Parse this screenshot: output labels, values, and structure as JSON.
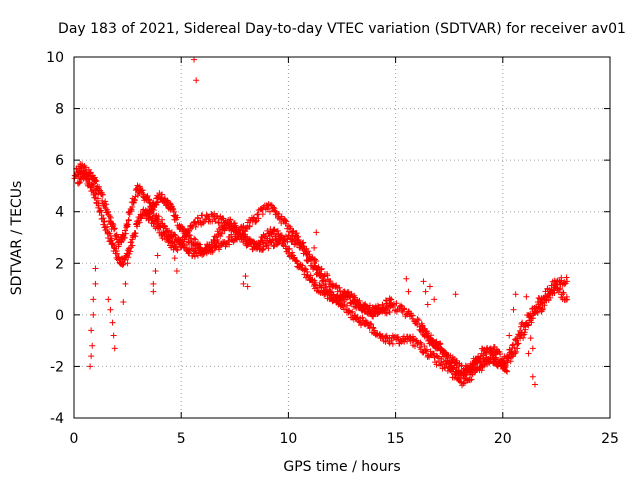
{
  "chart_data": {
    "type": "scatter",
    "title": "Day 183 of 2021, Sidereal Day-to-day VTEC variation (SDTVAR) for receiver av01",
    "xlabel": "GPS time / hours",
    "ylabel": "SDTVAR / TECUs",
    "xlim": [
      0,
      25
    ],
    "ylim": [
      -4,
      10
    ],
    "xticks": [
      0,
      5,
      10,
      15,
      20,
      25
    ],
    "yticks": [
      -4,
      -2,
      0,
      2,
      4,
      6,
      8,
      10
    ],
    "grid": true,
    "marker": "+",
    "color": "#ff0000",
    "series": [
      {
        "name": "av01",
        "curves": [
          {
            "x": [
              0.0,
              0.3,
              0.6,
              0.9,
              1.2,
              1.5,
              1.8,
              2.1,
              2.4,
              2.7,
              3.0,
              3.3,
              3.6,
              4.0,
              4.4,
              4.8,
              5.2,
              5.6,
              6.0,
              6.5,
              7.0,
              7.5,
              8.0,
              8.5,
              9.0,
              9.5,
              10.0,
              10.5,
              11.0,
              11.5,
              12.0,
              12.5,
              13.0,
              13.5,
              14.0,
              14.5,
              15.0,
              15.5,
              16.0,
              16.5,
              17.0,
              17.5,
              18.0,
              18.5,
              19.0,
              19.5,
              20.0,
              20.5,
              21.0,
              21.5,
              22.0,
              22.5,
              23.0
            ],
            "y": [
              5.4,
              5.7,
              5.6,
              5.3,
              4.8,
              4.1,
              3.4,
              2.8,
              3.2,
              4.3,
              4.9,
              4.6,
              4.2,
              3.6,
              3.2,
              2.9,
              2.6,
              2.4,
              2.5,
              2.6,
              2.8,
              3.0,
              3.4,
              3.8,
              4.2,
              3.9,
              3.4,
              2.9,
              2.3,
              1.7,
              1.2,
              0.8,
              0.5,
              0.3,
              0.2,
              0.2,
              0.3,
              0.1,
              -0.3,
              -0.8,
              -1.3,
              -1.8,
              -2.3,
              -2.1,
              -1.8,
              -1.7,
              -1.9,
              -1.2,
              -0.3,
              0.3,
              0.8,
              1.3,
              1.3
            ]
          },
          {
            "x": [
              0.2,
              0.5,
              0.8,
              1.1,
              1.4,
              1.7,
              2.0,
              2.3,
              2.6,
              2.9,
              3.2,
              3.5,
              3.9,
              4.3,
              4.7,
              5.1,
              5.5,
              6.0,
              6.5,
              7.0,
              7.5,
              8.0,
              8.5,
              9.0,
              9.5,
              10.0,
              10.5,
              11.0,
              11.5,
              12.0,
              12.5,
              13.0,
              13.5,
              14.0,
              14.5,
              15.0,
              15.5,
              16.0,
              16.5,
              17.0,
              17.5,
              18.0,
              18.5,
              19.0,
              19.5,
              20.0,
              20.5,
              21.0,
              21.5,
              22.0,
              22.5,
              23.0
            ],
            "y": [
              5.2,
              5.4,
              5.0,
              4.4,
              3.6,
              2.9,
              2.3,
              2.0,
              2.5,
              3.4,
              4.0,
              3.8,
              3.4,
              2.9,
              2.6,
              2.9,
              3.5,
              3.7,
              3.8,
              3.6,
              3.3,
              2.9,
              2.6,
              2.7,
              2.9,
              3.0,
              2.7,
              2.1,
              1.4,
              0.8,
              0.4,
              0.0,
              -0.3,
              -0.6,
              -0.9,
              -1.0,
              -0.9,
              -1.1,
              -1.5,
              -1.8,
              -2.1,
              -2.6,
              -2.4,
              -2.0,
              -1.6,
              -2.0,
              -1.5,
              -0.6,
              0.0,
              0.5,
              1.0,
              0.6
            ]
          },
          {
            "x": [
              3.4,
              3.7,
              4.0,
              4.3,
              4.6,
              4.9,
              5.2,
              5.6,
              6.0,
              6.4,
              6.8,
              7.2,
              7.6,
              8.0,
              8.4,
              8.8,
              9.2,
              9.6,
              10.0,
              10.4,
              10.8,
              11.2,
              11.6,
              12.0,
              12.4,
              12.8,
              13.2,
              13.6,
              14.0,
              14.4,
              14.8
            ],
            "y": [
              3.8,
              4.3,
              4.6,
              4.4,
              4.0,
              3.5,
              3.1,
              2.8,
              2.5,
              2.7,
              3.2,
              3.6,
              3.3,
              2.9,
              2.6,
              2.9,
              3.3,
              3.0,
              2.5,
              2.0,
              1.6,
              1.2,
              0.9,
              0.7,
              0.6,
              0.8,
              0.5,
              0.2,
              0.1,
              0.3,
              0.6
            ]
          },
          {
            "x": [
              16.2,
              16.6,
              17.0,
              17.4,
              17.8,
              18.2,
              18.6,
              19.0,
              19.4,
              19.8,
              20.2
            ],
            "y": [
              -0.5,
              -1.0,
              -1.2,
              -1.6,
              -1.9,
              -2.2,
              -1.9,
              -1.5,
              -1.3,
              -1.5,
              -2.2
            ]
          }
        ],
        "points": [
          {
            "x": 5.6,
            "y": 9.9
          },
          {
            "x": 5.7,
            "y": 9.1
          },
          {
            "x": 0.75,
            "y": -2.0
          },
          {
            "x": 0.8,
            "y": -1.6
          },
          {
            "x": 0.85,
            "y": -1.2
          },
          {
            "x": 0.8,
            "y": -0.6
          },
          {
            "x": 0.9,
            "y": 0.0
          },
          {
            "x": 0.9,
            "y": 0.6
          },
          {
            "x": 1.0,
            "y": 1.2
          },
          {
            "x": 1.0,
            "y": 1.8
          },
          {
            "x": 1.6,
            "y": 0.6
          },
          {
            "x": 1.7,
            "y": 0.2
          },
          {
            "x": 1.8,
            "y": -0.3
          },
          {
            "x": 1.85,
            "y": -0.8
          },
          {
            "x": 1.9,
            "y": -1.3
          },
          {
            "x": 2.3,
            "y": 0.5
          },
          {
            "x": 2.4,
            "y": 1.2
          },
          {
            "x": 2.5,
            "y": 2.0
          },
          {
            "x": 3.7,
            "y": 1.2
          },
          {
            "x": 3.7,
            "y": 0.9
          },
          {
            "x": 3.8,
            "y": 1.7
          },
          {
            "x": 3.9,
            "y": 2.3
          },
          {
            "x": 4.6,
            "y": 2.7
          },
          {
            "x": 4.7,
            "y": 2.2
          },
          {
            "x": 4.8,
            "y": 1.7
          },
          {
            "x": 7.9,
            "y": 1.2
          },
          {
            "x": 8.0,
            "y": 1.5
          },
          {
            "x": 8.1,
            "y": 1.1
          },
          {
            "x": 11.3,
            "y": 3.2
          },
          {
            "x": 11.2,
            "y": 2.6
          },
          {
            "x": 15.5,
            "y": 1.4
          },
          {
            "x": 15.6,
            "y": 0.9
          },
          {
            "x": 16.3,
            "y": 1.3
          },
          {
            "x": 16.4,
            "y": 0.9
          },
          {
            "x": 16.5,
            "y": 0.4
          },
          {
            "x": 16.6,
            "y": 1.1
          },
          {
            "x": 16.8,
            "y": 0.6
          },
          {
            "x": 17.8,
            "y": 0.8
          },
          {
            "x": 20.3,
            "y": -0.8
          },
          {
            "x": 20.5,
            "y": 0.2
          },
          {
            "x": 20.6,
            "y": 0.8
          },
          {
            "x": 21.1,
            "y": 0.7
          },
          {
            "x": 21.4,
            "y": -2.4
          },
          {
            "x": 21.5,
            "y": -2.7
          },
          {
            "x": 21.4,
            "y": -1.3
          },
          {
            "x": 21.2,
            "y": -1.5
          },
          {
            "x": 21.3,
            "y": -0.9
          }
        ]
      }
    ]
  }
}
